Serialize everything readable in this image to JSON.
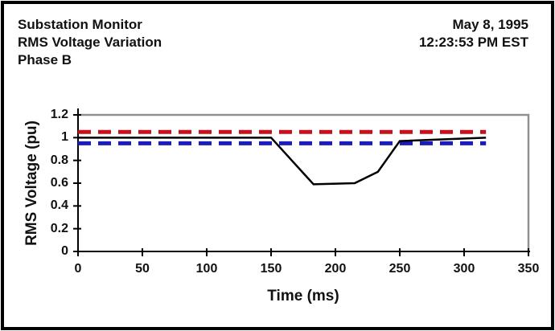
{
  "window": {
    "background": "#ffffff",
    "border_color": "#000000"
  },
  "header": {
    "title_lines": [
      "Substation Monitor",
      "RMS Voltage Variation",
      "Phase B"
    ],
    "date": "May 8, 1995",
    "time": "12:23:53 PM EST"
  },
  "chart_data": {
    "type": "line",
    "title": "RMS Voltage Variation - Phase B",
    "xlabel": "Time (ms)",
    "ylabel": "RMS Voltage (pu)",
    "xlim": [
      0,
      350
    ],
    "ylim": [
      0,
      1.2
    ],
    "x_ticks": [
      0,
      50,
      100,
      150,
      200,
      250,
      300,
      350
    ],
    "y_ticks": [
      0,
      0.2,
      0.4,
      0.6,
      0.8,
      1,
      1.2
    ],
    "grid": false,
    "legend_position": "none",
    "axis_color": "#000000",
    "plot_border_color": "#909090",
    "series": [
      {
        "name": "upper-limit",
        "label": "Upper voltage limit (1.05 pu)",
        "color": "#c8101c",
        "style": "dashed",
        "x": [
          0,
          317
        ],
        "y": [
          1.05,
          1.05
        ]
      },
      {
        "name": "lower-limit",
        "label": "Lower voltage limit (0.95 pu)",
        "color": "#1c1cbe",
        "style": "dashed",
        "x": [
          0,
          317
        ],
        "y": [
          0.95,
          0.95
        ]
      },
      {
        "name": "rms-voltage",
        "label": "RMS voltage Phase B",
        "color": "#000000",
        "style": "solid",
        "x": [
          0,
          150,
          183,
          215,
          233,
          250,
          317
        ],
        "y": [
          1.0,
          1.0,
          0.59,
          0.6,
          0.7,
          0.97,
          1.0
        ]
      }
    ]
  }
}
